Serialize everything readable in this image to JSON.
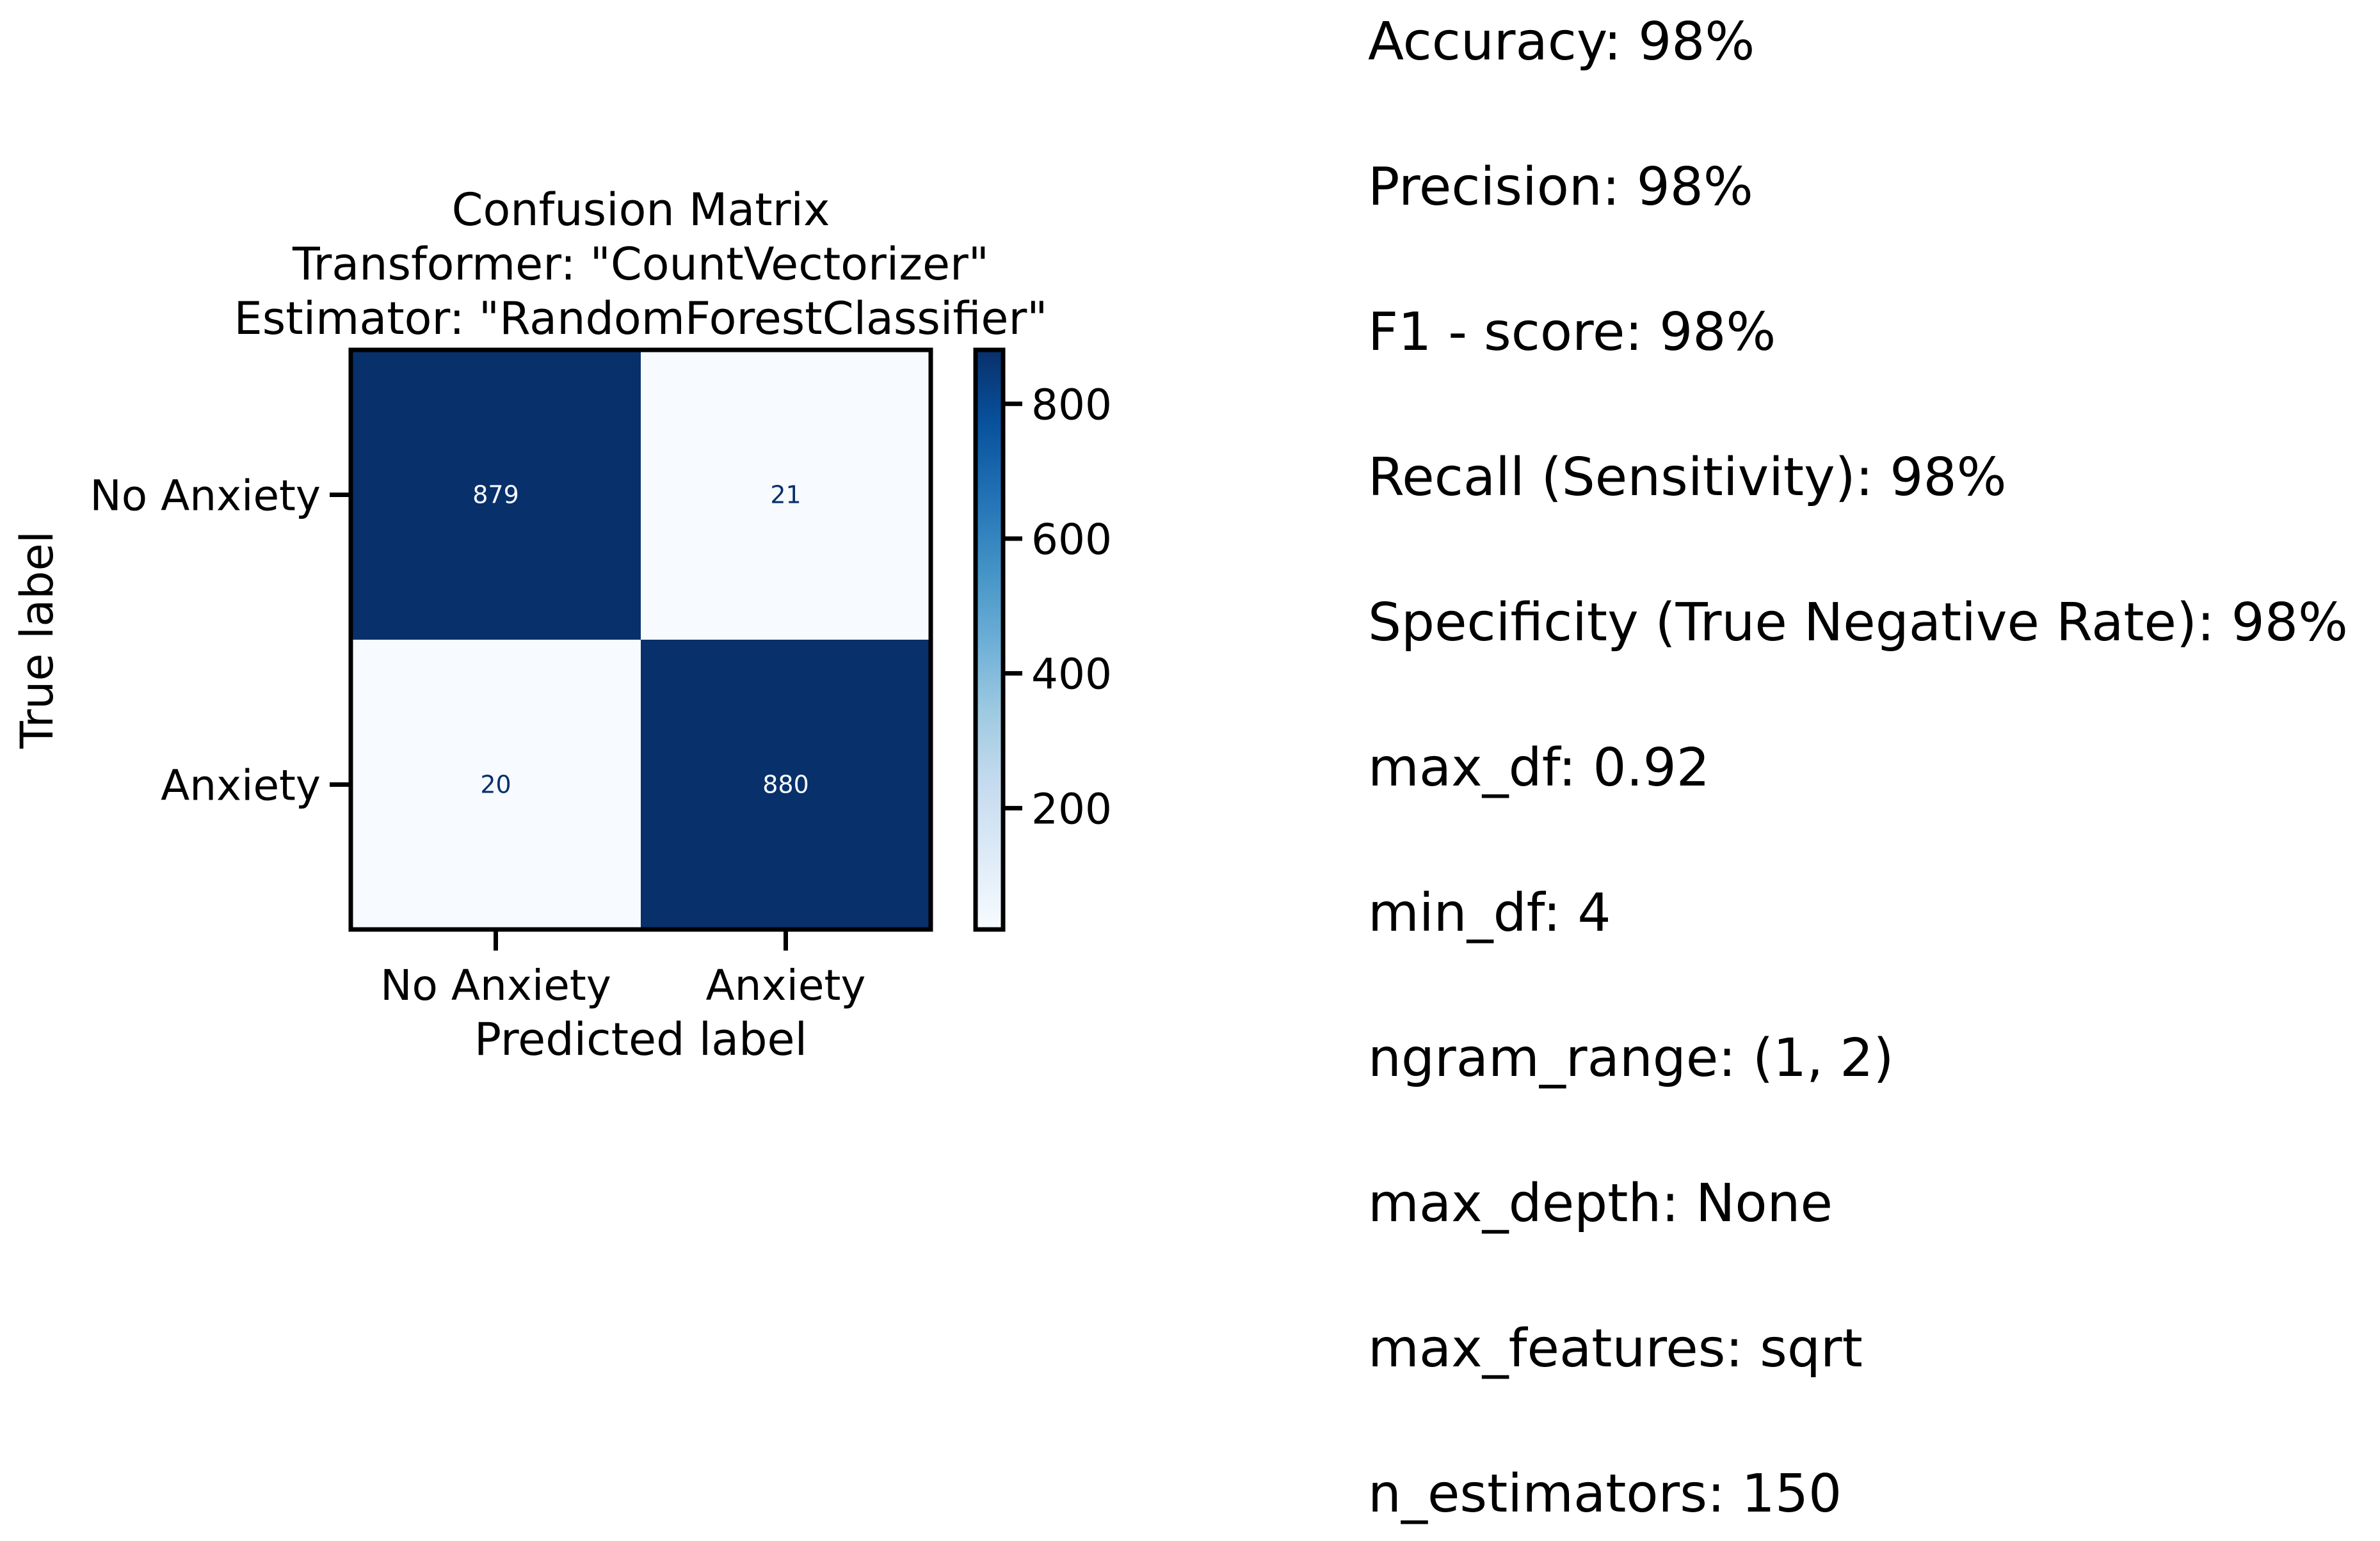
{
  "chart_data": {
    "type": "heatmap",
    "title": "Confusion Matrix\nTransformer: \"CountVectorizer\"\nEstimator: \"RandomForestClassifier\"",
    "xlabel": "Predicted label",
    "ylabel": "True label",
    "x_categories": [
      "No Anxiety",
      "Anxiety"
    ],
    "y_categories": [
      "No Anxiety",
      "Anxiety"
    ],
    "values": [
      [
        879,
        21
      ],
      [
        20,
        880
      ]
    ],
    "colormap": "Blues",
    "colorbar": {
      "ticks": [
        200,
        400,
        600,
        800
      ],
      "range": [
        20,
        880
      ]
    },
    "colors": {
      "dark": "#08306b",
      "light": "#f7fbff",
      "text_on_dark": "#f7fbff",
      "text_on_light": "#08306b"
    },
    "grid": false
  },
  "metrics": [
    "Accuracy: 98%",
    "Precision: 98%",
    "F1 - score: 98%",
    "Recall (Sensitivity): 98%",
    "Specificity (True Negative Rate): 98%",
    "max_df: 0.92",
    "min_df: 4",
    "ngram_range: (1, 2)",
    "max_depth: None",
    "max_features: sqrt",
    "n_estimators: 150"
  ]
}
